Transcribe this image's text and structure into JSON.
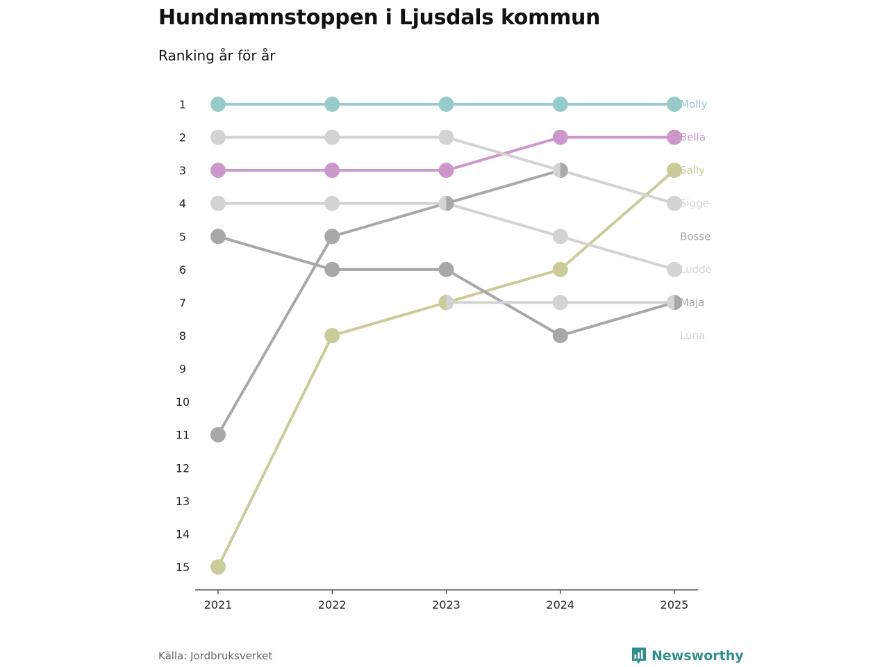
{
  "title": "Hundnamnstoppen i Ljusdals kommun",
  "subtitle": "Ranking år för år",
  "source": "Källa: Jordbruksverket",
  "brand": "Newsworthy",
  "chart_data": {
    "type": "line",
    "subtype": "bump",
    "x": [
      "2021",
      "2022",
      "2023",
      "2024",
      "2025"
    ],
    "y_ticks": [
      "1",
      "2",
      "3",
      "4",
      "5",
      "6",
      "7",
      "8",
      "9",
      "10",
      "11",
      "12",
      "13",
      "14",
      "15"
    ],
    "ylim": [
      1,
      15
    ],
    "y_reversed": true,
    "series": [
      {
        "name": "Molly",
        "color": "#97cbca",
        "ranks": [
          1,
          1,
          1,
          1,
          1
        ]
      },
      {
        "name": "Bella",
        "color": "#cc98cc",
        "ranks": [
          3,
          3,
          3,
          2,
          2
        ]
      },
      {
        "name": "Sally",
        "color": "#cacb98",
        "ranks": [
          15,
          8,
          7,
          6,
          3
        ]
      },
      {
        "name": "Sigge",
        "color": "#d3d3d3",
        "ranks": [
          2,
          2,
          2,
          3,
          4
        ]
      },
      {
        "name": "Bosse",
        "color": "#a8a8a8",
        "ranks": [
          11,
          5,
          4,
          3,
          null
        ]
      },
      {
        "name": "Ludde",
        "color": "#d3d3d3",
        "ranks": [
          4,
          4,
          4,
          5,
          6
        ]
      },
      {
        "name": "Maja",
        "color": "#a8a8a8",
        "ranks": [
          5,
          6,
          6,
          8,
          7
        ]
      },
      {
        "name": "Luna",
        "color": "#d3d3d3",
        "ranks": [
          null,
          null,
          7,
          7,
          7
        ]
      }
    ]
  }
}
